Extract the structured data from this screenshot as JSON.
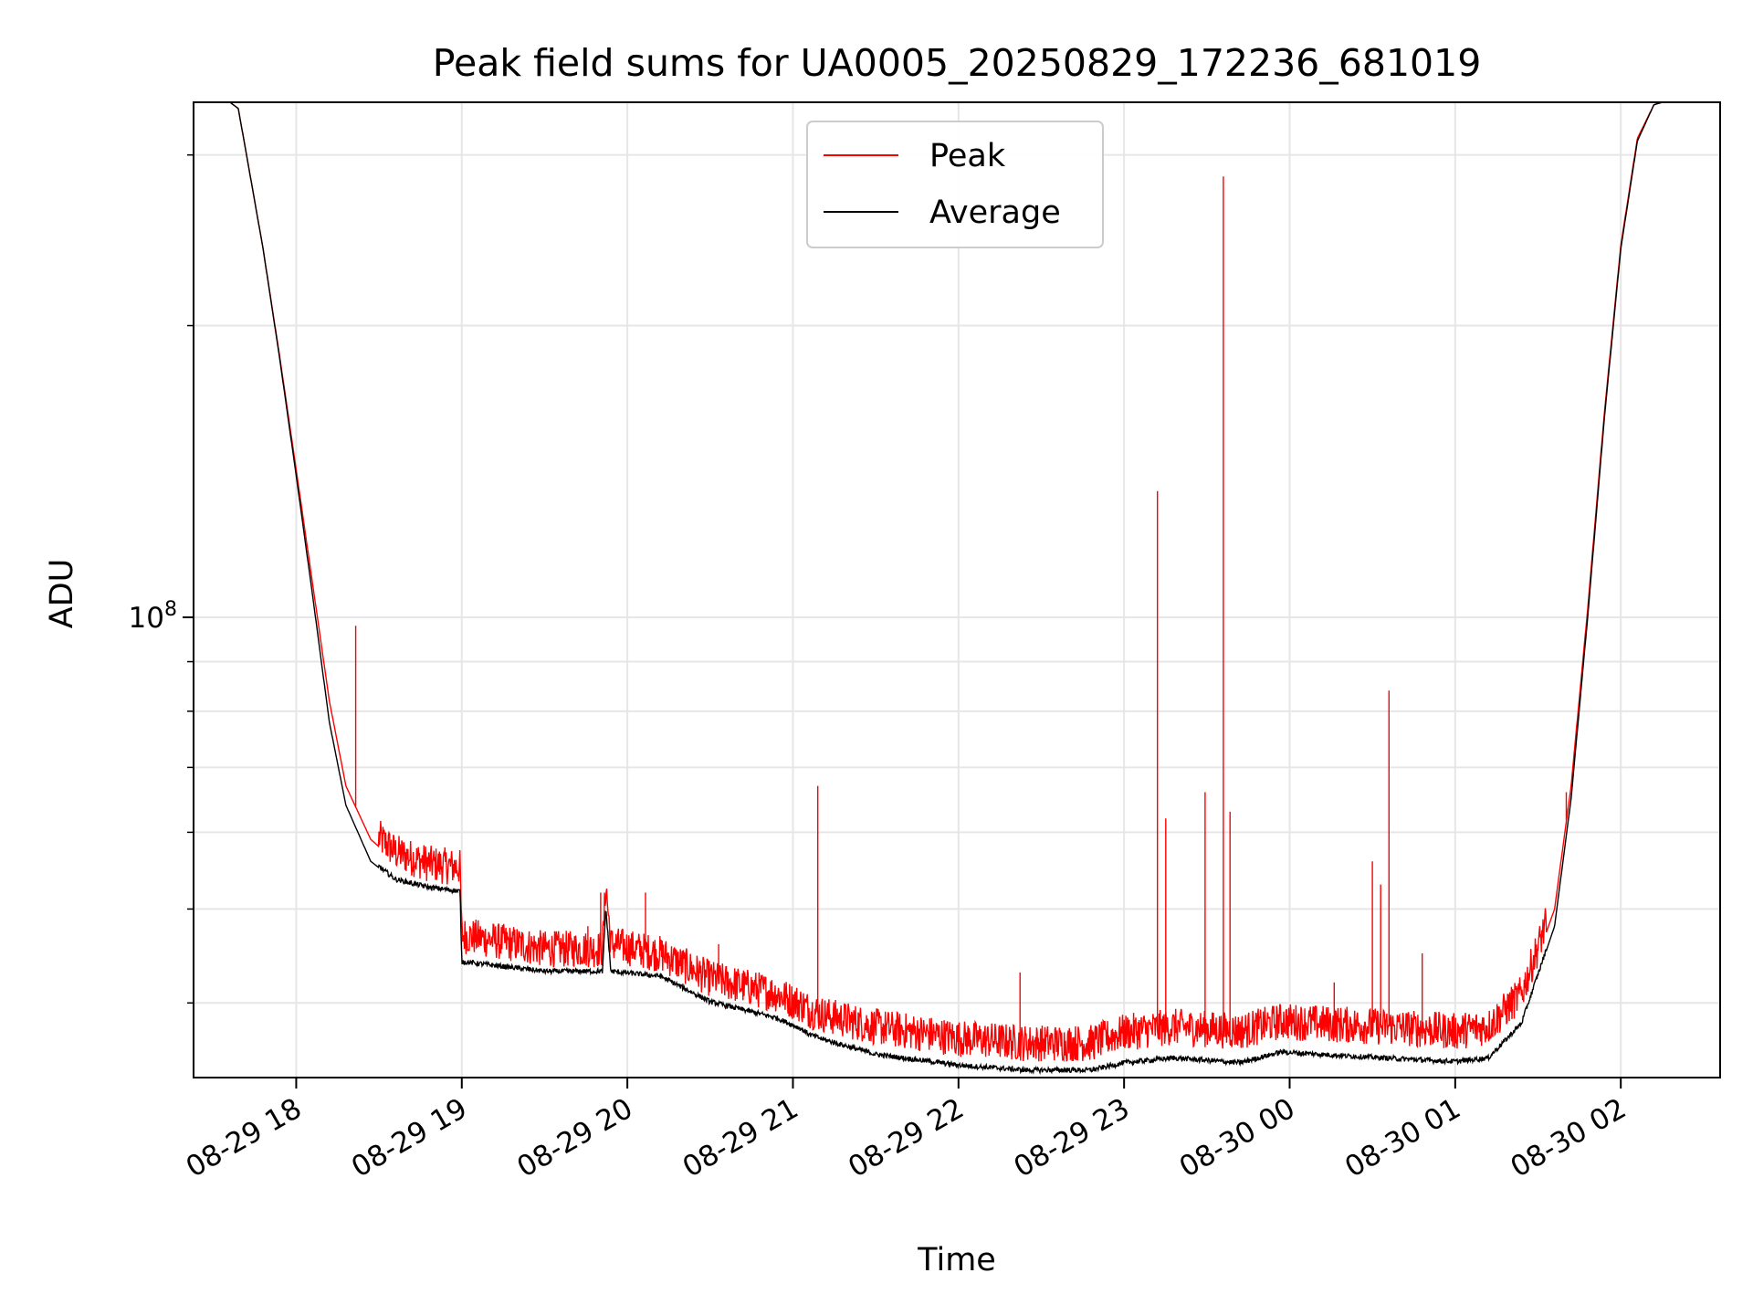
{
  "chart_data": {
    "type": "line",
    "title": "Peak field sums for UA0005_20250829_172236_681019",
    "xlabel": "Time",
    "ylabel": "ADU",
    "yscale": "log",
    "xunit": "hours since 08-29 17:00",
    "xlim": [
      0.38,
      9.6
    ],
    "ylim": [
      33500000,
      340000000
    ],
    "grid": true,
    "x_ticks": [
      {
        "value": 1,
        "label": "08-29 18"
      },
      {
        "value": 2,
        "label": "08-29 19"
      },
      {
        "value": 3,
        "label": "08-29 20"
      },
      {
        "value": 4,
        "label": "08-29 21"
      },
      {
        "value": 5,
        "label": "08-29 22"
      },
      {
        "value": 6,
        "label": "08-29 23"
      },
      {
        "value": 7,
        "label": "08-30 00"
      },
      {
        "value": 8,
        "label": "08-30 01"
      },
      {
        "value": 9,
        "label": "08-30 02"
      }
    ],
    "y_major_ticks": [
      {
        "value": 100000000,
        "base": "10",
        "exp": "8"
      }
    ],
    "y_minor_ticks": [
      40000000,
      50000000,
      60000000,
      70000000,
      80000000,
      90000000,
      200000000,
      300000000
    ],
    "legend": {
      "position": "upper-center"
    },
    "series": [
      {
        "name": "Average",
        "color": "#000000",
        "x": [
          0.6,
          0.65,
          0.7,
          0.8,
          0.9,
          1.0,
          1.1,
          1.2,
          1.3,
          1.45,
          1.6,
          1.8,
          1.99,
          2.0,
          2.5,
          2.85,
          2.87,
          2.9,
          3.2,
          3.5,
          3.9,
          4.05,
          4.1,
          4.2,
          4.5,
          5.0,
          5.4,
          5.8,
          6.0,
          6.3,
          6.7,
          6.95,
          7.3,
          7.7,
          8.0,
          8.2,
          8.4,
          8.6,
          8.7,
          8.8,
          8.9,
          9.0,
          9.1,
          9.2,
          9.25,
          9.3
        ],
        "y": [
          340000000,
          335000000,
          300000000,
          240000000,
          185000000,
          140000000,
          105000000,
          78000000,
          64000000,
          56000000,
          53500000,
          52500000,
          52000000,
          44000000,
          43000000,
          43000000,
          50000000,
          43000000,
          42500000,
          40000000,
          38500000,
          37500000,
          37000000,
          36500000,
          35300000,
          34400000,
          34000000,
          34000000,
          34600000,
          35000000,
          34600000,
          35500000,
          35200000,
          34900000,
          34700000,
          35000000,
          38000000,
          48000000,
          65000000,
          100000000,
          160000000,
          240000000,
          310000000,
          338000000,
          340000000,
          340000000
        ]
      },
      {
        "name": "Peak",
        "color": "#ff0000",
        "x": [
          0.6,
          0.65,
          0.7,
          0.8,
          0.9,
          1.0,
          1.1,
          1.2,
          1.3,
          1.45,
          1.6,
          1.8,
          1.99,
          2.0,
          2.5,
          2.85,
          2.87,
          2.9,
          3.2,
          3.5,
          3.9,
          4.05,
          4.1,
          4.2,
          4.5,
          5.0,
          5.4,
          5.8,
          6.0,
          6.3,
          6.7,
          6.95,
          7.3,
          7.7,
          8.0,
          8.2,
          8.4,
          8.6,
          8.7,
          8.8,
          8.9,
          9.0,
          9.1,
          9.2,
          9.25,
          9.3
        ],
        "y": [
          340000000,
          335000000,
          300000000,
          240000000,
          186000000,
          142000000,
          108000000,
          82000000,
          67000000,
          59000000,
          56000000,
          54500000,
          54000000,
          46000000,
          44500000,
          44500000,
          52000000,
          45000000,
          44000000,
          41500000,
          40000000,
          39000000,
          38500000,
          38000000,
          37000000,
          36000000,
          35600000,
          35600000,
          36500000,
          37000000,
          36600000,
          37500000,
          37200000,
          36900000,
          36600000,
          37000000,
          40000000,
          50000000,
          67000000,
          102000000,
          162000000,
          242000000,
          312000000,
          338000000,
          340000000,
          340000000
        ],
        "spikes": [
          {
            "x": 1.36,
            "y": 98000000
          },
          {
            "x": 1.55,
            "y": 58000000
          },
          {
            "x": 1.78,
            "y": 58000000
          },
          {
            "x": 2.76,
            "y": 48000000
          },
          {
            "x": 2.84,
            "y": 52000000
          },
          {
            "x": 3.11,
            "y": 52000000
          },
          {
            "x": 3.55,
            "y": 46000000
          },
          {
            "x": 4.15,
            "y": 67000000
          },
          {
            "x": 5.37,
            "y": 43000000
          },
          {
            "x": 6.2,
            "y": 135000000
          },
          {
            "x": 6.25,
            "y": 62000000
          },
          {
            "x": 6.49,
            "y": 66000000
          },
          {
            "x": 6.6,
            "y": 285000000
          },
          {
            "x": 6.64,
            "y": 63000000
          },
          {
            "x": 7.27,
            "y": 42000000
          },
          {
            "x": 7.5,
            "y": 56000000
          },
          {
            "x": 7.55,
            "y": 53000000
          },
          {
            "x": 7.6,
            "y": 84000000
          },
          {
            "x": 7.8,
            "y": 45000000
          },
          {
            "x": 8.67,
            "y": 66000000
          }
        ]
      }
    ]
  }
}
